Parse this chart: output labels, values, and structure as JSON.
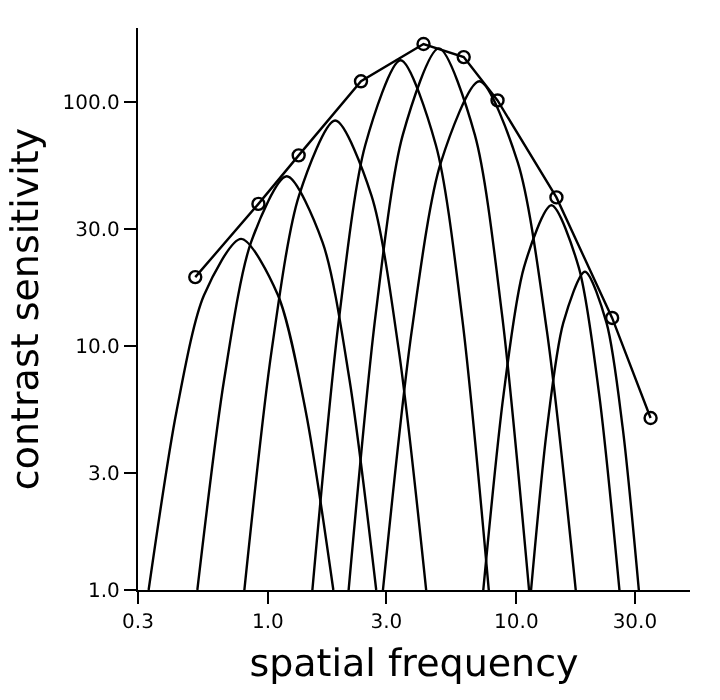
{
  "chart_data": {
    "type": "line",
    "xlabel": "spatial frequency",
    "ylabel": "contrast sensitivity",
    "log": "xy",
    "xlim": [
      0.3,
      50
    ],
    "ylim": [
      1,
      200
    ],
    "xticks": [
      0.3,
      {
        "value": 1,
        "label": "1.0"
      },
      {
        "value": 3,
        "label": "3.0"
      },
      {
        "value": 10,
        "label": "10.0"
      },
      {
        "value": 30,
        "label": "30.0"
      }
    ],
    "yticks": [
      {
        "value": 1,
        "label": "1.0"
      },
      {
        "value": 3,
        "label": "3.0"
      },
      {
        "value": 10,
        "label": "10.0"
      },
      {
        "value": 30,
        "label": "30.0"
      },
      {
        "value": 100,
        "label": "100.0"
      }
    ],
    "series": [
      {
        "color": "#000000",
        "marker": "none",
        "x": [
          0.331,
          0.429,
          0.553,
          0.78,
          1.098,
          1.419,
          1.834
        ],
        "values": [
          1,
          5.41,
          16.1,
          27.4,
          16.1,
          5.41,
          1
        ]
      },
      {
        "color": "#000000",
        "marker": "none",
        "x": [
          0.52,
          0.667,
          0.855,
          1.191,
          1.66,
          2.128,
          2.729
        ],
        "values": [
          1,
          7.31,
          26.5,
          49.4,
          26.5,
          7.31,
          1
        ]
      },
      {
        "color": "#000000",
        "marker": "none",
        "x": [
          0.804,
          1.035,
          1.334,
          1.866,
          2.612,
          3.365,
          4.335
        ],
        "values": [
          1,
          9.55,
          41.2,
          83.6,
          41.2,
          9.55,
          1
        ]
      },
      {
        "color": "#000000",
        "marker": "none",
        "x": [
          1.51,
          1.931,
          2.466,
          3.42,
          4.742,
          6.063,
          7.745
        ],
        "values": [
          1,
          12.8,
          66.4,
          147.6,
          66.4,
          12.8,
          1
        ]
      },
      {
        "color": "#000000",
        "marker": "none",
        "x": [
          2.113,
          2.716,
          3.491,
          4.875,
          6.808,
          8.75,
          11.25
        ],
        "values": [
          1,
          13.5,
          73.0,
          165,
          73.0,
          13.5,
          1
        ]
      },
      {
        "color": "#000000",
        "marker": "none",
        "x": [
          2.904,
          3.793,
          4.966,
          7.096,
          10.14,
          13.27,
          17.34
        ],
        "values": [
          1,
          11.5,
          56.2,
          121,
          56.2,
          11.5,
          1
        ]
      },
      {
        "color": "#000000",
        "marker": "none",
        "x": [
          7.36,
          8.89,
          10.74,
          13.84,
          17.82,
          21.53,
          26.0
        ],
        "values": [
          1,
          6.35,
          21.0,
          37.6,
          21.0,
          6.35,
          1
        ]
      },
      {
        "color": "#000000",
        "marker": "none",
        "x": [
          11.46,
          13.3,
          15.45,
          18.88,
          23.07,
          26.79,
          31.12
        ],
        "values": [
          1,
          4.62,
          12.4,
          20.1,
          12.4,
          4.62,
          1
        ]
      },
      {
        "color": "#000000",
        "marker": "circle",
        "x": [
          0.51,
          0.916,
          1.33,
          2.37,
          4.23,
          6.14,
          8.4,
          14.5,
          24.3,
          34.7
        ],
        "values": [
          19.1,
          38.1,
          60.2,
          121,
          172,
          152,
          101,
          40.5,
          13.0,
          5.06
        ]
      }
    ]
  }
}
